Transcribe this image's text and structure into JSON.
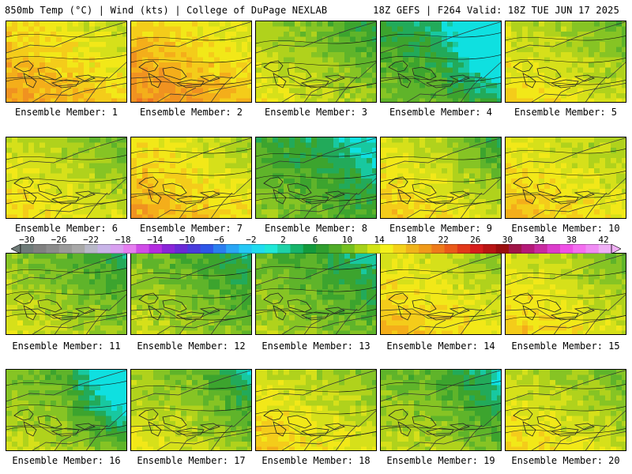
{
  "header": {
    "left": "850mb Temp (°C) | Wind (kts) | College of DuPage NEXLAB",
    "right": "18Z GEFS | F264 Valid: 18Z TUE JUN 17 2025"
  },
  "caption_prefix": "Ensemble Member:",
  "members": [
    {
      "label": "Ensemble Member: 1",
      "warmth": 0.8,
      "cold_ne": 0.05
    },
    {
      "label": "Ensemble Member: 2",
      "warmth": 0.85,
      "cold_ne": 0.0
    },
    {
      "label": "Ensemble Member: 3",
      "warmth": 0.5,
      "cold_ne": 0.15
    },
    {
      "label": "Ensemble Member: 4",
      "warmth": 0.2,
      "cold_ne": 0.7
    },
    {
      "label": "Ensemble Member: 5",
      "warmth": 0.6,
      "cold_ne": 0.05
    },
    {
      "label": "Ensemble Member: 6",
      "warmth": 0.6,
      "cold_ne": 0.05
    },
    {
      "label": "Ensemble Member: 7",
      "warmth": 0.75,
      "cold_ne": 0.05
    },
    {
      "label": "Ensemble Member: 8",
      "warmth": 0.25,
      "cold_ne": 0.1
    },
    {
      "label": "Ensemble Member: 9",
      "warmth": 0.65,
      "cold_ne": 0.3
    },
    {
      "label": "Ensemble Member: 10",
      "warmth": 0.7,
      "cold_ne": 0.0
    },
    {
      "label": "Ensemble Member: 11",
      "warmth": 0.45,
      "cold_ne": 0.1
    },
    {
      "label": "Ensemble Member: 12",
      "warmth": 0.4,
      "cold_ne": 0.1
    },
    {
      "label": "Ensemble Member: 13",
      "warmth": 0.35,
      "cold_ne": 0.1
    },
    {
      "label": "Ensemble Member: 14",
      "warmth": 0.7,
      "cold_ne": 0.05
    },
    {
      "label": "Ensemble Member: 15",
      "warmth": 0.65,
      "cold_ne": 0.1
    },
    {
      "label": "Ensemble Member: 16",
      "warmth": 0.4,
      "cold_ne": 0.8
    },
    {
      "label": "Ensemble Member: 17",
      "warmth": 0.5,
      "cold_ne": 0.3
    },
    {
      "label": "Ensemble Member: 18",
      "warmth": 0.65,
      "cold_ne": 0.05
    },
    {
      "label": "Ensemble Member: 19",
      "warmth": 0.4,
      "cold_ne": 0.25
    },
    {
      "label": "Ensemble Member: 20",
      "warmth": 0.6,
      "cold_ne": 0.05
    }
  ],
  "colorbar": {
    "labels": [
      "-30",
      "-26",
      "-22",
      "-18",
      "-14",
      "-10",
      "-6",
      "-2",
      "2",
      "6",
      "10",
      "14",
      "18",
      "22",
      "26",
      "30",
      "34",
      "38",
      "42"
    ],
    "colors": [
      "#6e7b78",
      "#808080",
      "#8c8c8c",
      "#9a9a9a",
      "#a8a8a8",
      "#b8b8c8",
      "#c8b4e8",
      "#d8a0f0",
      "#e67ef0",
      "#d04ce8",
      "#b42de0",
      "#8a25d8",
      "#6a2ad6",
      "#4a3cdc",
      "#2e56e8",
      "#2a7ef0",
      "#2aa6f6",
      "#25c8f6",
      "#20dcf0",
      "#20e8d8",
      "#1ed2a8",
      "#17b46a",
      "#139a3c",
      "#2f9e2f",
      "#4fac28",
      "#74c020",
      "#a6d21a",
      "#d2e416",
      "#f4f01a",
      "#f4d21a",
      "#f0b41a",
      "#f09a1a",
      "#ee7a1a",
      "#ea5a1a",
      "#e2381a",
      "#d61c1c",
      "#b81414",
      "#9a0e0e",
      "#a01648",
      "#b41a78",
      "#c82aa0",
      "#dc3ccc",
      "#f050e6",
      "#f46ef0",
      "#f08cf4",
      "#f0b0f6"
    ]
  },
  "tempColors": [
    "#0fe0e0",
    "#18c8a0",
    "#22aa5a",
    "#3ca42e",
    "#5fb42a",
    "#86c424",
    "#b0d21c",
    "#d6e01a",
    "#f2e818",
    "#f4cc1a",
    "#f4ae1a",
    "#f09220",
    "#ee7222"
  ]
}
